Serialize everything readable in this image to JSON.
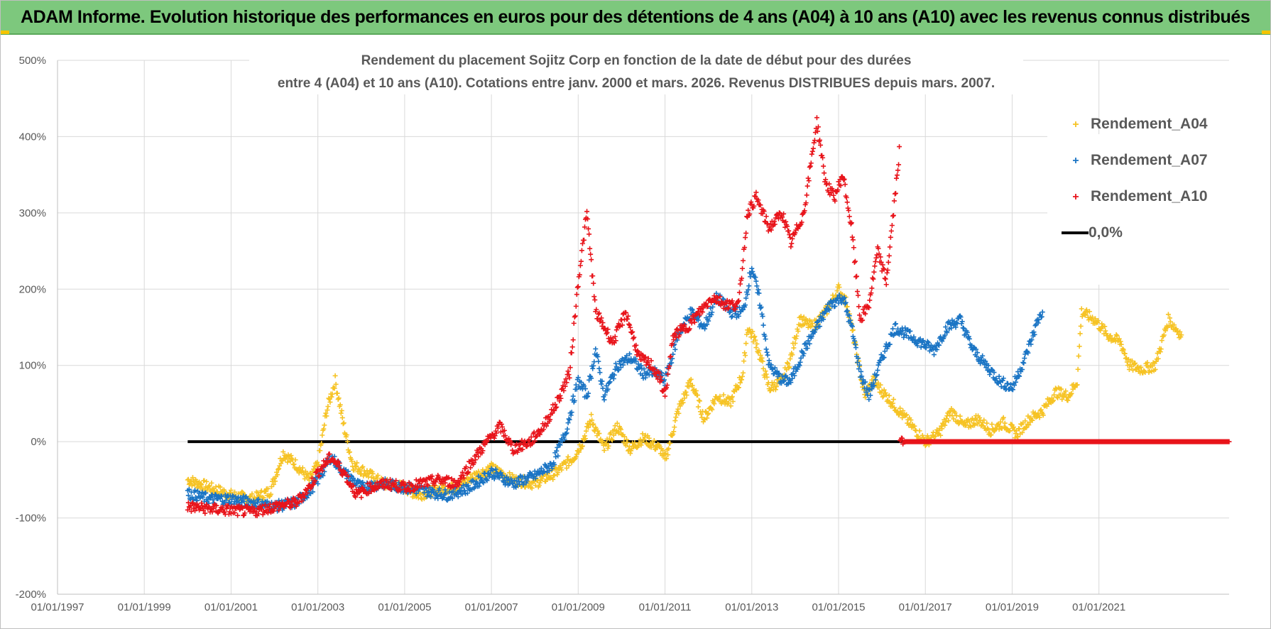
{
  "header": {
    "title": "ADAM Informe. Evolution historique des performances en euros pour des détentions de 4 ans (A04) à 10 ans (A10) avec les revenus connus distribués"
  },
  "colors": {
    "banner": "#7dc87d",
    "a04": "#f6c325",
    "a07": "#1a74c4",
    "a10": "#e8141b",
    "zero": "#000000",
    "grid": "#d9d9d9"
  },
  "chart_data": {
    "type": "scatter",
    "title": "Rendement du placement Sojitz Corp en fonction de la date de début pour des durées",
    "subtitle": "entre 4 (A04) et 10 ans (A10).  Cotations entre janv. 2000 et mars. 2026. Revenus DISTRIBUES depuis mars. 2007.",
    "xlabel": "",
    "ylabel": "",
    "xlim": [
      1997.0,
      2024.0
    ],
    "ylim": [
      -200,
      500
    ],
    "y_ticks": [
      "500%",
      "400%",
      "300%",
      "200%",
      "100%",
      "0%",
      "-100%",
      "-200%"
    ],
    "y_tick_values": [
      500,
      400,
      300,
      200,
      100,
      0,
      -100,
      -200
    ],
    "x_ticks": [
      "01/01/1997",
      "01/01/1999",
      "01/01/2001",
      "01/01/2003",
      "01/01/2005",
      "01/01/2007",
      "01/01/2009",
      "01/01/2011",
      "01/01/2013",
      "01/01/2015",
      "01/01/2017",
      "01/01/2019",
      "01/01/2021"
    ],
    "x_tick_values": [
      1997,
      1999,
      2001,
      2003,
      2005,
      2007,
      2009,
      2011,
      2013,
      2015,
      2017,
      2019,
      2021
    ],
    "legend": [
      "Rendement_A04",
      "Rendement_A07",
      "Rendement_A10",
      "0,0%"
    ],
    "legend_position": "top-right",
    "grid": true,
    "series": [
      {
        "name": "Rendement_A04",
        "color": "#f6c325",
        "points": [
          [
            2000.0,
            -50
          ],
          [
            2000.5,
            -60
          ],
          [
            2001.0,
            -70
          ],
          [
            2001.5,
            -75
          ],
          [
            2001.9,
            -65
          ],
          [
            2002.2,
            -15
          ],
          [
            2002.5,
            -30
          ],
          [
            2002.8,
            -50
          ],
          [
            2003.0,
            -30
          ],
          [
            2003.2,
            40
          ],
          [
            2003.4,
            80
          ],
          [
            2003.6,
            20
          ],
          [
            2003.8,
            -30
          ],
          [
            2004.1,
            -40
          ],
          [
            2004.5,
            -55
          ],
          [
            2005.0,
            -60
          ],
          [
            2005.3,
            -70
          ],
          [
            2005.8,
            -62
          ],
          [
            2006.2,
            -60
          ],
          [
            2006.6,
            -45
          ],
          [
            2007.0,
            -35
          ],
          [
            2007.5,
            -50
          ],
          [
            2008.0,
            -55
          ],
          [
            2008.5,
            -40
          ],
          [
            2008.9,
            -20
          ],
          [
            2009.1,
            0
          ],
          [
            2009.3,
            30
          ],
          [
            2009.6,
            -10
          ],
          [
            2009.9,
            20
          ],
          [
            2010.2,
            -10
          ],
          [
            2010.5,
            5
          ],
          [
            2010.9,
            -10
          ],
          [
            2011.0,
            -25
          ],
          [
            2011.3,
            40
          ],
          [
            2011.6,
            80
          ],
          [
            2011.9,
            30
          ],
          [
            2012.2,
            60
          ],
          [
            2012.5,
            50
          ],
          [
            2012.8,
            90
          ],
          [
            2012.9,
            150
          ],
          [
            2013.1,
            130
          ],
          [
            2013.4,
            70
          ],
          [
            2013.7,
            80
          ],
          [
            2013.9,
            110
          ],
          [
            2014.1,
            160
          ],
          [
            2014.4,
            150
          ],
          [
            2014.7,
            170
          ],
          [
            2015.0,
            200
          ],
          [
            2015.2,
            180
          ],
          [
            2015.4,
            120
          ],
          [
            2015.6,
            60
          ],
          [
            2015.8,
            80
          ],
          [
            2016.1,
            60
          ],
          [
            2016.4,
            40
          ],
          [
            2016.7,
            20
          ],
          [
            2017.0,
            0
          ],
          [
            2017.3,
            10
          ],
          [
            2017.6,
            40
          ],
          [
            2017.9,
            20
          ],
          [
            2018.2,
            30
          ],
          [
            2018.5,
            15
          ],
          [
            2018.8,
            25
          ],
          [
            2019.1,
            10
          ],
          [
            2019.4,
            30
          ],
          [
            2019.7,
            40
          ],
          [
            2020.0,
            65
          ],
          [
            2020.3,
            60
          ],
          [
            2020.5,
            80
          ],
          [
            2020.6,
            170
          ],
          [
            2020.9,
            160
          ],
          [
            2021.2,
            140
          ],
          [
            2021.5,
            130
          ],
          [
            2021.7,
            100
          ],
          [
            2022.0,
            95
          ],
          [
            2022.3,
            100
          ],
          [
            2022.6,
            160
          ],
          [
            2022.9,
            140
          ]
        ]
      },
      {
        "name": "Rendement_A07",
        "color": "#1a74c4",
        "points": [
          [
            2000.0,
            -68
          ],
          [
            2000.5,
            -75
          ],
          [
            2001.0,
            -75
          ],
          [
            2001.5,
            -80
          ],
          [
            2002.0,
            -85
          ],
          [
            2002.5,
            -80
          ],
          [
            2002.8,
            -65
          ],
          [
            2003.0,
            -50
          ],
          [
            2003.3,
            -20
          ],
          [
            2003.6,
            -40
          ],
          [
            2004.0,
            -60
          ],
          [
            2004.5,
            -55
          ],
          [
            2005.0,
            -60
          ],
          [
            2005.5,
            -65
          ],
          [
            2006.0,
            -70
          ],
          [
            2006.5,
            -60
          ],
          [
            2007.0,
            -40
          ],
          [
            2007.5,
            -55
          ],
          [
            2008.0,
            -45
          ],
          [
            2008.4,
            -30
          ],
          [
            2008.7,
            10
          ],
          [
            2009.0,
            80
          ],
          [
            2009.2,
            60
          ],
          [
            2009.4,
            120
          ],
          [
            2009.6,
            60
          ],
          [
            2009.9,
            100
          ],
          [
            2010.2,
            110
          ],
          [
            2010.5,
            90
          ],
          [
            2010.8,
            90
          ],
          [
            2011.0,
            80
          ],
          [
            2011.3,
            140
          ],
          [
            2011.6,
            170
          ],
          [
            2011.9,
            150
          ],
          [
            2012.2,
            190
          ],
          [
            2012.5,
            170
          ],
          [
            2012.8,
            170
          ],
          [
            2013.0,
            230
          ],
          [
            2013.2,
            180
          ],
          [
            2013.4,
            100
          ],
          [
            2013.7,
            80
          ],
          [
            2013.9,
            80
          ],
          [
            2014.2,
            120
          ],
          [
            2014.5,
            150
          ],
          [
            2014.8,
            180
          ],
          [
            2015.1,
            190
          ],
          [
            2015.3,
            150
          ],
          [
            2015.5,
            90
          ],
          [
            2015.7,
            60
          ],
          [
            2016.0,
            110
          ],
          [
            2016.3,
            150
          ],
          [
            2016.6,
            140
          ],
          [
            2016.9,
            130
          ],
          [
            2017.2,
            120
          ],
          [
            2017.5,
            150
          ],
          [
            2017.8,
            160
          ],
          [
            2018.1,
            120
          ],
          [
            2018.4,
            100
          ],
          [
            2018.7,
            80
          ],
          [
            2019.0,
            70
          ],
          [
            2019.3,
            110
          ],
          [
            2019.6,
            160
          ],
          [
            2019.7,
            170
          ]
        ]
      },
      {
        "name": "Rendement_A10",
        "color": "#e8141b",
        "points": [
          [
            2000.0,
            -85
          ],
          [
            2000.5,
            -88
          ],
          [
            2001.0,
            -90
          ],
          [
            2001.5,
            -92
          ],
          [
            2002.0,
            -85
          ],
          [
            2002.5,
            -80
          ],
          [
            2002.8,
            -60
          ],
          [
            2003.0,
            -40
          ],
          [
            2003.3,
            -20
          ],
          [
            2003.6,
            -40
          ],
          [
            2003.9,
            -70
          ],
          [
            2004.2,
            -60
          ],
          [
            2004.6,
            -55
          ],
          [
            2005.0,
            -60
          ],
          [
            2005.4,
            -55
          ],
          [
            2005.8,
            -50
          ],
          [
            2006.2,
            -55
          ],
          [
            2006.5,
            -30
          ],
          [
            2006.9,
            0
          ],
          [
            2007.2,
            20
          ],
          [
            2007.5,
            -10
          ],
          [
            2007.9,
            0
          ],
          [
            2008.2,
            20
          ],
          [
            2008.5,
            50
          ],
          [
            2008.8,
            90
          ],
          [
            2009.0,
            210
          ],
          [
            2009.2,
            300
          ],
          [
            2009.4,
            170
          ],
          [
            2009.6,
            150
          ],
          [
            2009.8,
            130
          ],
          [
            2010.1,
            170
          ],
          [
            2010.4,
            110
          ],
          [
            2010.7,
            100
          ],
          [
            2010.9,
            80
          ],
          [
            2011.0,
            60
          ],
          [
            2011.2,
            140
          ],
          [
            2011.5,
            150
          ],
          [
            2011.8,
            170
          ],
          [
            2012.1,
            190
          ],
          [
            2012.4,
            180
          ],
          [
            2012.7,
            180
          ],
          [
            2012.9,
            300
          ],
          [
            2013.1,
            320
          ],
          [
            2013.4,
            280
          ],
          [
            2013.7,
            300
          ],
          [
            2013.9,
            260
          ],
          [
            2014.2,
            300
          ],
          [
            2014.5,
            420
          ],
          [
            2014.7,
            340
          ],
          [
            2014.9,
            320
          ],
          [
            2015.1,
            350
          ],
          [
            2015.3,
            280
          ],
          [
            2015.5,
            160
          ],
          [
            2015.7,
            180
          ],
          [
            2015.9,
            250
          ],
          [
            2016.1,
            210
          ],
          [
            2016.3,
            320
          ],
          [
            2016.4,
            380
          ],
          [
            2016.5,
            0
          ],
          [
            2017.0,
            0
          ],
          [
            2018.0,
            0
          ],
          [
            2019.0,
            0
          ],
          [
            2020.0,
            0
          ],
          [
            2021.0,
            0
          ],
          [
            2022.0,
            0
          ],
          [
            2023.0,
            0
          ],
          [
            2024.0,
            0
          ]
        ]
      },
      {
        "name": "0,0%",
        "color": "#000000",
        "type": "line",
        "x_range": [
          2000.0,
          2016.5
        ],
        "y": 0
      }
    ]
  }
}
